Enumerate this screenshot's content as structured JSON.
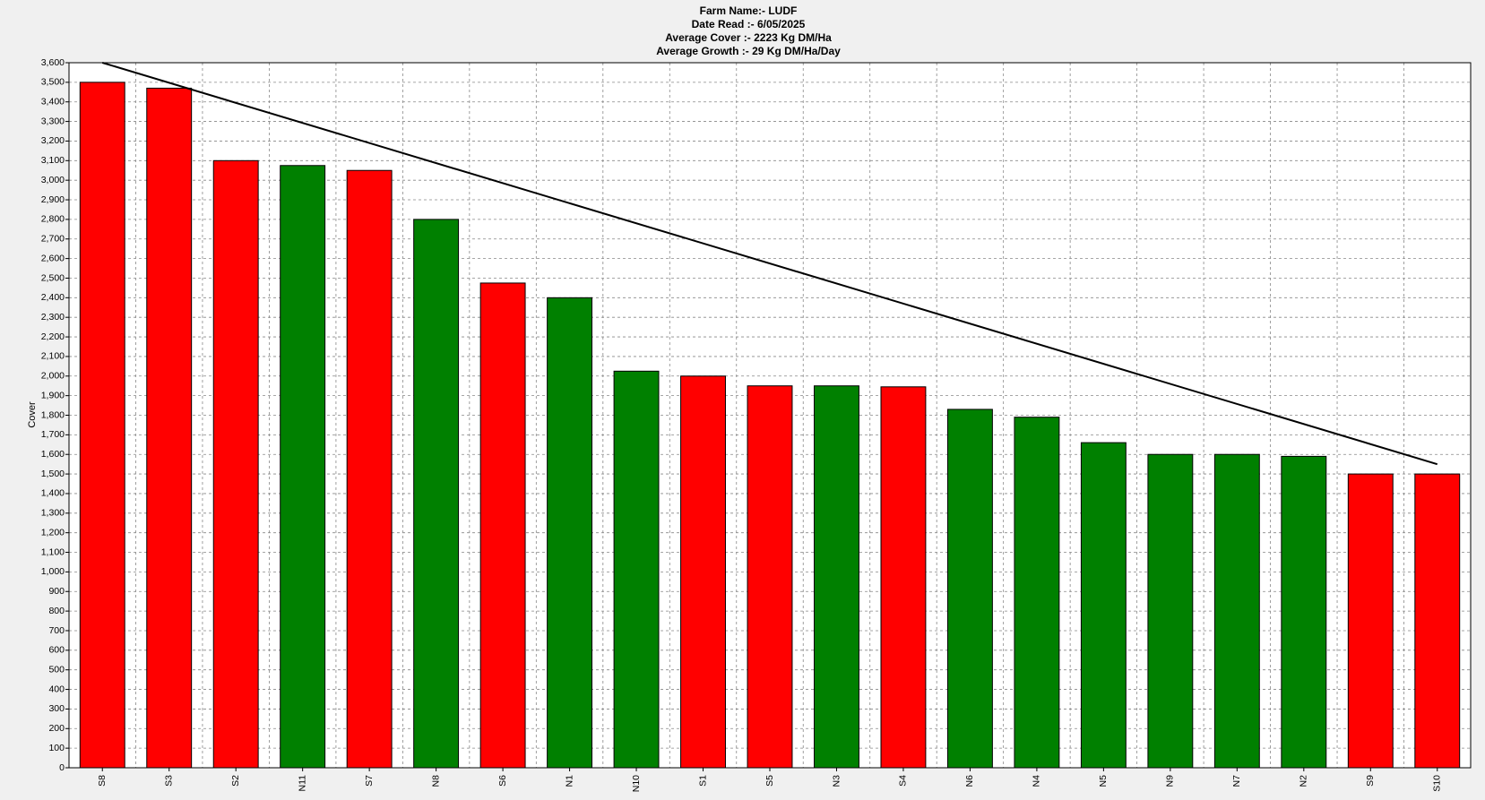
{
  "chart_data": {
    "type": "bar",
    "title_lines": [
      "Farm Name:- LUDF",
      "Date Read :-  6/05/2025",
      "Average Cover :-  2223 Kg DM/Ha",
      "Average Growth :-  29 Kg DM/Ha/Day"
    ],
    "y_label": "Cover",
    "categories": [
      "S8",
      "S3",
      "S2",
      "N11",
      "S7",
      "N8",
      "S6",
      "N1",
      "N10",
      "S1",
      "S5",
      "N3",
      "S4",
      "N6",
      "N4",
      "N5",
      "N9",
      "N7",
      "N2",
      "S9",
      "S10"
    ],
    "values": [
      3500,
      3470,
      3100,
      3075,
      3050,
      2800,
      2475,
      2400,
      2025,
      2000,
      1950,
      1950,
      1945,
      1830,
      1790,
      1660,
      1600,
      1600,
      1590,
      1500,
      1500
    ],
    "colors": [
      "#ff0000",
      "#ff0000",
      "#ff0000",
      "#008000",
      "#ff0000",
      "#008000",
      "#ff0000",
      "#008000",
      "#008000",
      "#ff0000",
      "#ff0000",
      "#008000",
      "#ff0000",
      "#008000",
      "#008000",
      "#008000",
      "#008000",
      "#008000",
      "#008000",
      "#ff0000",
      "#ff0000"
    ],
    "target_line": {
      "x": [
        0,
        20
      ],
      "values": [
        3600,
        1550
      ],
      "color": "#000000"
    },
    "ylim": [
      0,
      3600
    ],
    "yticks": [
      0,
      100,
      200,
      300,
      400,
      500,
      600,
      700,
      800,
      900,
      {
        "value": 1000,
        "label": "1,000"
      },
      {
        "value": 1100,
        "label": "1,100"
      },
      {
        "value": 1200,
        "label": "1,200"
      },
      {
        "value": 1300,
        "label": "1,300"
      },
      {
        "value": 1400,
        "label": "1,400"
      },
      {
        "value": 1500,
        "label": "1,500"
      },
      {
        "value": 1600,
        "label": "1,600"
      },
      {
        "value": 1700,
        "label": "1,700"
      },
      {
        "value": 1800,
        "label": "1,800"
      },
      {
        "value": 1900,
        "label": "1,900"
      },
      {
        "value": 2000,
        "label": "2,000"
      },
      {
        "value": 2100,
        "label": "2,100"
      },
      {
        "value": 2200,
        "label": "2,200"
      },
      {
        "value": 2300,
        "label": "2,300"
      },
      {
        "value": 2400,
        "label": "2,400"
      },
      {
        "value": 2500,
        "label": "2,500"
      },
      {
        "value": 2600,
        "label": "2,600"
      },
      {
        "value": 2700,
        "label": "2,700"
      },
      {
        "value": 2800,
        "label": "2,800"
      },
      {
        "value": 2900,
        "label": "2,900"
      },
      {
        "value": 3000,
        "label": "3,000"
      },
      {
        "value": 3100,
        "label": "3,100"
      },
      {
        "value": 3200,
        "label": "3,200"
      },
      {
        "value": 3300,
        "label": "3,300"
      },
      {
        "value": 3400,
        "label": "3,400"
      },
      {
        "value": 3500,
        "label": "3,500"
      },
      {
        "value": 3600,
        "label": "3,600"
      }
    ],
    "grid": true
  }
}
